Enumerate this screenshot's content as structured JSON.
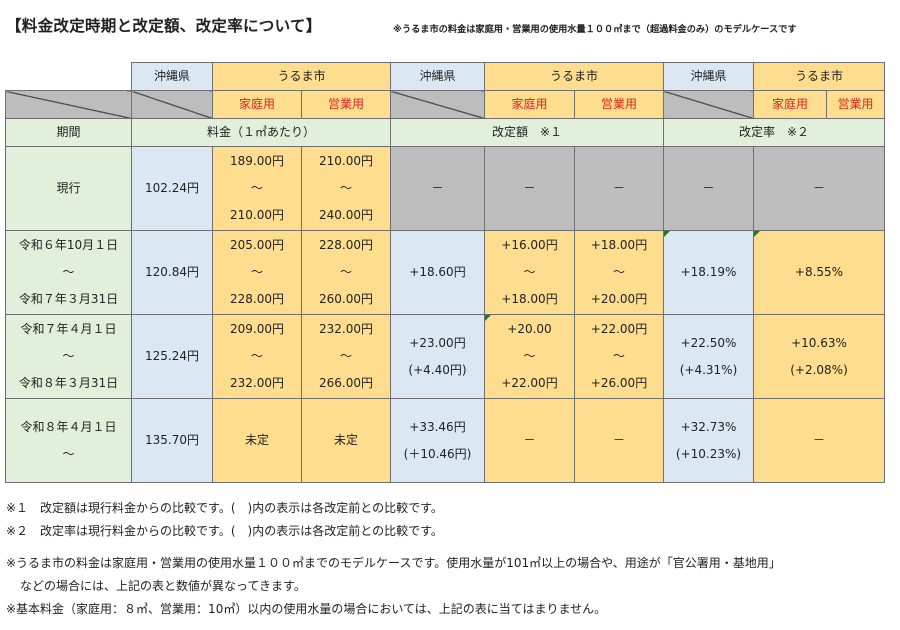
{
  "title": "【料金改定時期と改定額、改定率について】",
  "note_top": "※うるま市の料金は家庭用・営業用の使用水量１００㎥まで（超過料金のみ）のモデルケースです",
  "header": {
    "okinawa": "沖縄県",
    "uruma": "うるま市",
    "household": "家庭用",
    "business": "営業用",
    "period": "期間",
    "rate_label": "料金（１㎥あたり）",
    "change_amount": "改定額　※１",
    "change_rate": "改定率　※２"
  },
  "rows": [
    {
      "period": [
        "現行"
      ],
      "okinawa": [
        "102.24円"
      ],
      "household": [
        "189.00円",
        "～",
        "210.00円"
      ],
      "business": [
        "210.00円",
        "～",
        "240.00円"
      ],
      "amt_okinawa": [
        "－"
      ],
      "amt_household": [
        "－"
      ],
      "amt_business": [
        "－"
      ],
      "rate_okinawa": [
        "－"
      ],
      "rate_uruma": [
        "－"
      ]
    },
    {
      "period": [
        "令和６年10月１日",
        "～",
        "令和７年３月31日"
      ],
      "okinawa": [
        "120.84円"
      ],
      "household": [
        "205.00円",
        "～",
        "228.00円"
      ],
      "business": [
        "228.00円",
        "～",
        "260.00円"
      ],
      "amt_okinawa": [
        "+18.60円"
      ],
      "amt_household": [
        "+16.00円",
        "～",
        "+18.00円"
      ],
      "amt_business": [
        "+18.00円",
        "～",
        "+20.00円"
      ],
      "rate_okinawa": [
        "+18.19%"
      ],
      "rate_uruma": [
        "+8.55%"
      ]
    },
    {
      "period": [
        "令和７年４月１日",
        "～",
        "令和８年３月31日"
      ],
      "okinawa": [
        "125.24円"
      ],
      "household": [
        "209.00円",
        "～",
        "232.00円"
      ],
      "business": [
        "232.00円",
        "～",
        "266.00円"
      ],
      "amt_okinawa": [
        "+23.00円",
        "(+4.40円)"
      ],
      "amt_household": [
        "+20.00",
        "～",
        "+22.00円"
      ],
      "amt_business": [
        "+22.00円",
        "～",
        "+26.00円"
      ],
      "rate_okinawa": [
        "+22.50%",
        "(+4.31%)"
      ],
      "rate_uruma": [
        "+10.63%",
        "(+2.08%)"
      ]
    },
    {
      "period": [
        "令和８年４月１日",
        "～"
      ],
      "okinawa": [
        "135.70円"
      ],
      "household": [
        "未定"
      ],
      "business": [
        "未定"
      ],
      "amt_okinawa": [
        "+33.46円",
        "(＋10.46円)"
      ],
      "amt_household": [
        "－"
      ],
      "amt_business": [
        "－"
      ],
      "rate_okinawa": [
        "+32.73%",
        "(+10.23%)"
      ],
      "rate_uruma": [
        "－"
      ]
    }
  ],
  "footnotes": {
    "note1": "※１　改定額は現行料金からの比較です。(　)内の表示は各改定前との比較です。",
    "note2": "※２　改定率は現行料金からの比較です。(　)内の表示は各改定前との比較です。",
    "note3a": "※うるま市の料金は家庭用・営業用の使用水量１００㎥までのモデルケースです。使用水量が101㎥以上の場合や、用途が「官公署用・基地用」",
    "note3b": "などの場合には、上記の表と数値が異なってきます。",
    "note4": "※基本料金（家庭用：８㎥、営業用：10㎥）以内の使用水量の場合においては、上記の表に当てはまりません。"
  }
}
